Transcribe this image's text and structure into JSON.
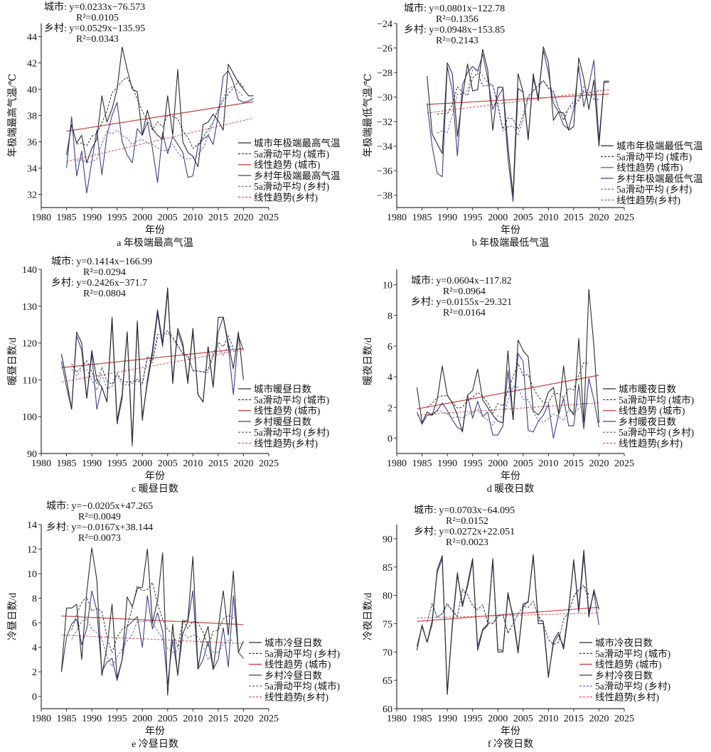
{
  "chart_data": [
    {
      "type": "line",
      "title": "a 年极端最高气温",
      "xlabel": "年份",
      "ylabel": "年极端最高气温/℃",
      "xlim": [
        1980,
        2025
      ],
      "ylim": [
        31,
        45
      ],
      "xticks": [
        "1980",
        "1985",
        "1990",
        "1995",
        "2000",
        "2005",
        "2010",
        "2015",
        "2020",
        "2025"
      ],
      "yticks": [
        "32",
        "34",
        "36",
        "38",
        "40",
        "42",
        "44"
      ],
      "year_range": [
        1985,
        2022
      ],
      "equations": [
        {
          "label": "城市:",
          "eq": " y=0.0233x−76.573",
          "r2": "R²=0.0105"
        },
        {
          "label": "乡村:",
          "eq": " y=0.0529x−135.95",
          "r2": "R²=0.0343"
        }
      ],
      "legend": [
        "城市年极端最高气温",
        "5a滑动平均 (城市)",
        "线性趋势 (城市)",
        "乡村年极端最高气温",
        "5a滑动平均 (乡村)",
        "线性趋势(乡村)"
      ],
      "urban": [
        35.0,
        37.3,
        35.9,
        36.5,
        34.4,
        35.5,
        36.2,
        39.5,
        37.5,
        38.5,
        40.0,
        43.2,
        41.5,
        40.0,
        39.8,
        36.5,
        38.4,
        37.0,
        36.5,
        36.2,
        39.5,
        36.5,
        41.5,
        36.0,
        35.2,
        34.9,
        34.1,
        37.3,
        37.5,
        38.1,
        37.6,
        36.9,
        41.9,
        41.2,
        40.5,
        40.0,
        39.5,
        39.5
      ],
      "rural": [
        34.0,
        37.9,
        33.4,
        35.3,
        32.1,
        34.5,
        36.9,
        33.5,
        36.5,
        38.0,
        39.0,
        36.0,
        35.0,
        34.4,
        37.0,
        36.5,
        37.5,
        35.5,
        32.9,
        36.7,
        35.1,
        36.4,
        35.8,
        35.2,
        33.3,
        33.4,
        35.7,
        36.2,
        36.5,
        35.8,
        38.0,
        41.0,
        41.4,
        40.5,
        39.2,
        39.0,
        39.1,
        39.3
      ],
      "trend_urban": [
        36.8,
        39.05
      ],
      "trend_rural": [
        34.5,
        37.8
      ]
    },
    {
      "type": "line",
      "title": "b 年极端最低气温",
      "xlabel": "年份",
      "ylabel": "年极端最低气温/℃",
      "xlim": [
        1980,
        2025
      ],
      "ylim": [
        -39,
        -24
      ],
      "xticks": [
        "1980",
        "1985",
        "1990",
        "1995",
        "2000",
        "2005",
        "2010",
        "2015",
        "2020",
        "2025"
      ],
      "yticks": [
        "−38",
        "−36",
        "−34",
        "−32",
        "−30",
        "−28",
        "−26",
        "−24"
      ],
      "year_range": [
        1986,
        2022
      ],
      "equations": [
        {
          "label": "城市:",
          "eq": " y=0.0801x−122.78",
          "r2": "R²=0.1356"
        },
        {
          "label": "乡村:",
          "eq": " y=0.0948x−153.85",
          "r2": "R²=0.2143"
        }
      ],
      "legend": [
        "城市年极端最低气温",
        "5a滑动平均 (城市)",
        "线性趋势 (城市)",
        "乡村年极端最低气温",
        "5a滑动平均 (乡村)",
        "线性趋势(乡村)"
      ],
      "urban": [
        -28.3,
        -33.0,
        -33.8,
        -34.6,
        -27.2,
        -28.1,
        -33.2,
        -30.0,
        -27.3,
        -29.5,
        -29.4,
        -26.1,
        -27.8,
        -32.7,
        -29.2,
        -29.2,
        -34.0,
        -38.0,
        -28.1,
        -29.6,
        -33.5,
        -28.1,
        -30.3,
        -25.9,
        -27.2,
        -31.9,
        -31.2,
        -31.3,
        -32.7,
        -32.4,
        -26.8,
        -28.5,
        -31.0,
        -28.6,
        -34.0,
        -28.7,
        -28.7
      ],
      "rural": [
        -30.5,
        -34.0,
        -36.2,
        -36.5,
        -27.5,
        -29.5,
        -34.8,
        -29.0,
        -28.0,
        -27.5,
        -27.9,
        -26.5,
        -28.5,
        -31.0,
        -30.0,
        -29.3,
        -35.0,
        -38.5,
        -29.3,
        -29.6,
        -33.3,
        -28.5,
        -30.0,
        -26.2,
        -28.0,
        -30.5,
        -31.2,
        -32.3,
        -32.6,
        -31.0,
        -27.5,
        -30.8,
        -29.1,
        -27.0,
        -33.5,
        -28.8,
        -28.8
      ],
      "trend_urban": [
        -30.6,
        -29.75
      ],
      "trend_rural": [
        -31.3,
        -29.4
      ]
    },
    {
      "type": "line",
      "title": "c 暖昼日数",
      "xlabel": "年份",
      "ylabel": "暖昼日数/d",
      "xlim": [
        1980,
        2025
      ],
      "ylim": [
        90,
        140
      ],
      "xticks": [
        "1980",
        "1985",
        "1990",
        "1995",
        "2000",
        "2005",
        "2010",
        "2015",
        "2020",
        "2025"
      ],
      "yticks": [
        "90",
        "100",
        "110",
        "120",
        "130",
        "140"
      ],
      "year_range": [
        1984,
        2020
      ],
      "equations": [
        {
          "label": "城市:",
          "eq": " y=0.1414x−166.99",
          "r2": "R²=0.0294"
        },
        {
          "label": "乡村:",
          "eq": " y=0.2426x−371.7",
          "r2": "R²=0.0804"
        }
      ],
      "legend": [
        "城市暖昼日数",
        "5a滑动平均 (城市)",
        "线性趋势 (城市)",
        "乡村暖昼日数",
        "5a滑动平均 (乡村)",
        "线性趋势(乡村)"
      ],
      "urban": [
        117,
        110,
        102,
        123,
        120,
        105,
        118,
        110,
        108,
        104,
        127,
        99,
        106,
        123,
        93,
        126,
        99,
        110,
        118,
        129,
        120,
        135,
        109,
        124,
        120,
        109,
        124,
        106,
        104,
        119,
        108,
        127,
        127,
        120,
        113,
        123,
        110
      ],
      "rural": [
        115,
        108,
        102,
        122,
        118,
        105,
        117,
        102,
        108,
        104,
        126,
        98,
        105,
        123,
        92,
        125,
        100,
        109,
        117,
        128,
        119,
        134,
        110,
        123,
        119,
        110,
        123,
        106,
        104,
        119,
        108,
        123,
        127,
        119,
        106,
        122,
        118
      ],
      "trend_urban": [
        113.3,
        118.5
      ],
      "trend_rural": [
        109.4,
        118.2
      ]
    },
    {
      "type": "line",
      "title": "d 暖夜日数",
      "xlabel": "年份",
      "ylabel": "暖夜日数/d",
      "xlim": [
        1980,
        2025
      ],
      "ylim": [
        -1,
        11
      ],
      "xticks": [
        "1980",
        "1985",
        "1990",
        "1995",
        "2000",
        "2005",
        "2010",
        "2015",
        "2020",
        "2025"
      ],
      "yticks": [
        "0",
        "2",
        "4",
        "6",
        "8",
        "10"
      ],
      "year_range": [
        1984,
        2020
      ],
      "equations": [
        {
          "label": "城市:",
          "eq": " y=0.0604x−117.82",
          "r2": "R²=0.0964"
        },
        {
          "label": "乡村:",
          "eq": " y=0.0155x−29.321",
          "r2": "R²=0.0164"
        }
      ],
      "legend": [
        "城市暖夜日数",
        "5a滑动平均 (城市)",
        "线性趋势 (城市)",
        "乡村暖夜日数",
        "5a滑动平均 (乡村)",
        "线性趋势(乡村)"
      ],
      "urban": [
        3.3,
        1.0,
        1.7,
        1.5,
        2.5,
        4.7,
        2.8,
        2.3,
        1.5,
        0.4,
        2.8,
        3.1,
        4.5,
        2.5,
        2.0,
        1.5,
        1.1,
        1.0,
        5.7,
        1.2,
        6.4,
        5.7,
        5.3,
        1.8,
        1.5,
        2.0,
        3.0,
        3.3,
        1.6,
        4.7,
        2.0,
        1.5,
        6.5,
        1.0,
        9.7,
        6.0,
        1.0
      ],
      "rural": [
        1.7,
        0.9,
        1.5,
        1.5,
        1.8,
        2.3,
        1.8,
        1.2,
        0.7,
        0.5,
        2.8,
        1.3,
        2.4,
        1.4,
        1.7,
        0.2,
        0.2,
        0.8,
        4.4,
        1.2,
        5.5,
        5.0,
        0.5,
        0.4,
        1.1,
        1.5,
        2.2,
        0.0,
        1.5,
        2.6,
        0.8,
        0.8,
        3.5,
        0.6,
        3.9,
        2.5,
        0.7
      ],
      "trend_urban": [
        1.9,
        4.1
      ],
      "trend_rural": [
        1.5,
        2.3
      ]
    },
    {
      "type": "line",
      "title": "e 冷昼日数",
      "xlabel": "年份",
      "ylabel": "冷昼日数/d",
      "xlim": [
        1980,
        2025
      ],
      "ylim": [
        -1,
        14
      ],
      "xticks": [
        "1980",
        "1985",
        "1990",
        "1995",
        "2000",
        "2005",
        "2010",
        "2015",
        "2020",
        "2025"
      ],
      "yticks": [
        "0",
        "2",
        "4",
        "6",
        "8",
        "10",
        "12",
        "14"
      ],
      "year_range": [
        1984,
        2020
      ],
      "equations": [
        {
          "label": "城市:",
          "eq": " y=−0.0205x+47.265",
          "r2": "R²=0.0049"
        },
        {
          "label": "乡村:",
          "eq": " y=−0.0167x+38.144",
          "r2": "R²=0.0073"
        }
      ],
      "legend": [
        "城市冷昼日数",
        "5a滑动平均 (乡村)",
        "线性趋势 (城市)",
        "乡村冷昼日数",
        "5a滑动平均 (城市)",
        "线性趋势(乡村)"
      ],
      "urban": [
        2.0,
        7.2,
        7.2,
        7.5,
        3.0,
        8.5,
        12.1,
        9.5,
        1.7,
        4.0,
        7.5,
        1.5,
        3.0,
        8.1,
        7.3,
        8.8,
        8.9,
        12.0,
        6.0,
        7.8,
        11.7,
        0.1,
        5.9,
        1.7,
        6.1,
        6.2,
        11.4,
        2.3,
        4.5,
        5.7,
        2.2,
        5.5,
        8.6,
        5.0,
        10.2,
        3.6,
        4.5
      ],
      "rural": [
        2.0,
        4.8,
        5.9,
        6.3,
        4.2,
        5.5,
        8.6,
        7.0,
        2.0,
        2.8,
        3.1,
        1.3,
        3.0,
        5.7,
        6.1,
        6.5,
        4.0,
        8.2,
        5.5,
        6.8,
        5.3,
        1.0,
        4.6,
        1.8,
        5.1,
        6.1,
        8.6,
        2.2,
        3.0,
        4.5,
        2.2,
        3.0,
        5.6,
        2.4,
        8.2,
        3.6,
        3.1
      ],
      "trend_urban": [
        6.55,
        5.85
      ],
      "trend_rural": [
        5.0,
        4.3
      ]
    },
    {
      "type": "line",
      "title": "f 冷夜日数",
      "xlabel": "年份",
      "ylabel": "冷夜日数/d",
      "xlim": [
        1980,
        2025
      ],
      "ylim": [
        60,
        92.5
      ],
      "xticks": [
        "1980",
        "1985",
        "1990",
        "1995",
        "2000",
        "2005",
        "2010",
        "2015",
        "2020",
        "2025"
      ],
      "yticks": [
        "60",
        "65",
        "70",
        "75",
        "80",
        "85",
        "90"
      ],
      "year_range": [
        1984,
        2020
      ],
      "equations": [
        {
          "label": "城市:",
          "eq": " y=0.0703x−64.095",
          "r2": "R²=0.0152"
        },
        {
          "label": "乡村:",
          "eq": " y=0.0272x+22.051",
          "r2": "R²=0.0023"
        }
      ],
      "legend": [
        "城市冷夜日数",
        "5a滑动平均 (城市)",
        "线性趋势 (城市)",
        "乡村冷夜日数",
        "5a滑动平均 (乡村)",
        "线性趋势(乡村)"
      ],
      "urban": [
        70.3,
        74.8,
        71.7,
        75.0,
        84.5,
        87.0,
        62.5,
        75.0,
        84.0,
        78.0,
        82.0,
        86.5,
        70.3,
        73.8,
        74.7,
        86.5,
        70.0,
        70.0,
        80.5,
        76.0,
        69.8,
        78.5,
        78.8,
        87.2,
        75.0,
        75.0,
        65.5,
        72.0,
        73.5,
        70.5,
        77.0,
        86.3,
        77.5,
        88.0,
        76.2,
        81.0,
        77.5
      ],
      "rural": [
        71.0,
        74.5,
        71.8,
        75.5,
        84.0,
        86.5,
        63.0,
        74.5,
        83.5,
        78.5,
        81.5,
        86.0,
        71.0,
        74.0,
        75.0,
        86.0,
        70.5,
        70.2,
        80.0,
        76.5,
        70.2,
        78.0,
        79.0,
        86.8,
        75.5,
        75.5,
        65.8,
        71.5,
        73.0,
        71.0,
        77.5,
        86.0,
        77.0,
        87.0,
        77.0,
        80.5,
        74.8
      ],
      "trend_urban": [
        75.4,
        77.9
      ],
      "trend_rural": [
        76.0,
        76.9
      ]
    }
  ],
  "colors": {
    "urban_line": "#2a2a2a",
    "urban_ma": "#222222",
    "urban_trend": "#c9524c",
    "rural_line": "#3d3f82",
    "rural_ma": "#5b5d9c",
    "rural_trend": "#e06a64"
  }
}
